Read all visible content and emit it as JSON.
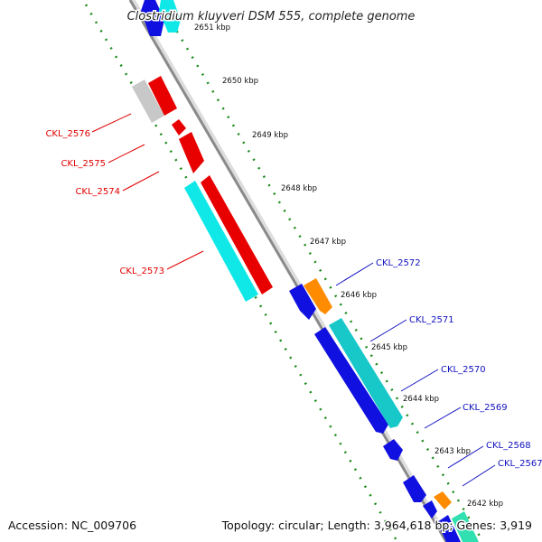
{
  "title": "Clostridium kluyveri DSM 555, complete genome",
  "accession": "Accession: NC_009706",
  "summary": "Topology: circular; Length: 3,964,618 bp; Genes: 3,919",
  "colors": {
    "backbone": "#8a8a8a",
    "ticks": "#1a8a1a",
    "red_label": "#e00000",
    "blue_label": "#1010c0"
  },
  "ticks": [
    {
      "label": "2651 kbp"
    },
    {
      "label": "2650 kbp"
    },
    {
      "label": "2649 kbp"
    },
    {
      "label": "2648 kbp"
    },
    {
      "label": "2647 kbp"
    },
    {
      "label": "2646 kbp"
    },
    {
      "label": "2645 kbp"
    },
    {
      "label": "2644 kbp"
    },
    {
      "label": "2643 kbp"
    },
    {
      "label": "2642 kbp"
    }
  ],
  "genes_left": [
    {
      "label": "CKL_2576",
      "color": "red"
    },
    {
      "label": "CKL_2575",
      "color": "red"
    },
    {
      "label": "CKL_2574",
      "color": "red"
    },
    {
      "label": "CKL_2573",
      "color": "red"
    }
  ],
  "genes_right": [
    {
      "label": "CKL_2572",
      "color": "blue"
    },
    {
      "label": "CKL_2571",
      "color": "blue"
    },
    {
      "label": "CKL_2570",
      "color": "blue"
    },
    {
      "label": "CKL_2569",
      "color": "blue"
    },
    {
      "label": "CKL_2568",
      "color": "blue"
    },
    {
      "label": "CKL_2567",
      "color": "blue"
    }
  ]
}
